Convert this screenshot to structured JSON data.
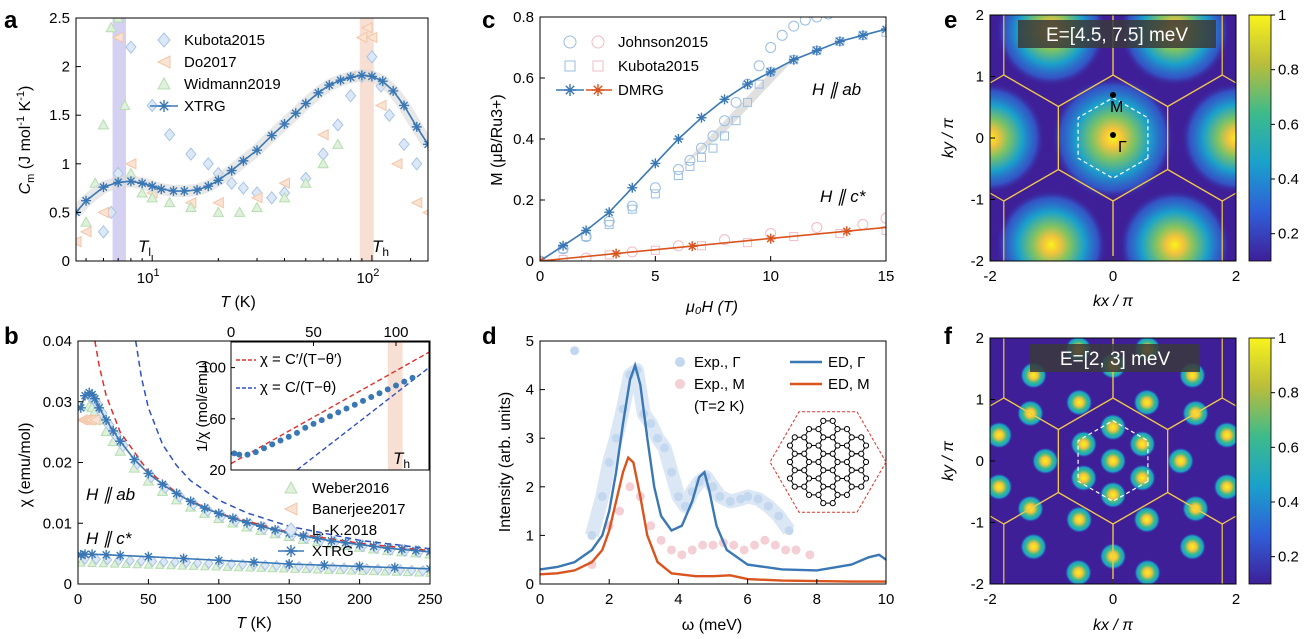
{
  "panels": {
    "a": {
      "label": "a",
      "xlabel_italic": "T",
      "xlabel_rest": " (K)",
      "ylabel_main": "C",
      "ylabel_sub": "m",
      "ylabel_rest": " (J mol",
      "ylabel_exp1": "-1",
      "ylabel_mid": " K",
      "ylabel_exp2": "-1",
      "ylabel_end": ")",
      "xticks": [
        "10",
        "10"
      ],
      "xtick_exps": [
        "1",
        "2"
      ],
      "yticks": [
        "0",
        "0.5",
        "1",
        "1.5",
        "2",
        "2.5"
      ],
      "legend": [
        "Kubota2015",
        "Do2017",
        "Widmann2019",
        "XTRG"
      ],
      "annot_Tl": "T",
      "annot_Tl_sub": "l",
      "annot_Th": "T",
      "annot_Th_sub": "h"
    },
    "b": {
      "label": "b",
      "xlabel_italic": "T",
      "xlabel_rest": " (K)",
      "ylabel": "χ (emu/mol)",
      "xticks": [
        "0",
        "50",
        "100",
        "150",
        "200",
        "250"
      ],
      "yticks": [
        "0",
        "0.01",
        "0.02",
        "0.03",
        "0.04"
      ],
      "legend": [
        "Weber2016",
        "Banerjee2017",
        "L.-K.2018",
        "XTRG"
      ],
      "annot_ab": "H ∥ ab",
      "annot_c": "H ∥ c*",
      "inset": {
        "ylabel": "1/χ (mol/emu)",
        "xticks": [
          "0",
          "50",
          "100"
        ],
        "yticks": [
          "20",
          "60",
          "100"
        ],
        "legend": [
          "χ = C′/(T−θ′)",
          "χ = C/(T−θ)"
        ],
        "annot_Th": "T",
        "annot_Th_sub": "h"
      }
    },
    "c": {
      "label": "c",
      "xlabel": "μ₀H (T)",
      "ylabel": "M (μB/Ru3+)",
      "xticks": [
        "0",
        "5",
        "10",
        "15"
      ],
      "yticks": [
        "0",
        "0.2",
        "0.4",
        "0.6",
        "0.8"
      ],
      "legend": [
        "Johnson2015",
        "Kubota2015",
        "DMRG"
      ],
      "annot_ab": "H ∥ ab",
      "annot_c": "H ∥ c*"
    },
    "d": {
      "label": "d",
      "xlabel": "ω (meV)",
      "ylabel": "Intensity (arb. units)",
      "xticks": [
        "0",
        "2",
        "4",
        "6",
        "8",
        "10"
      ],
      "yticks": [
        "0",
        "1",
        "2",
        "3",
        "4",
        "5"
      ],
      "legend": [
        "Exp., Γ",
        "Exp., M",
        "(T=2 K)",
        "ED, Γ",
        "ED, M"
      ]
    },
    "e": {
      "label": "e",
      "title": "E=[4.5, 7.5] meV",
      "xlabel": "kx / π",
      "ylabel": "ky / π",
      "xticks": [
        "-2",
        "0",
        "2"
      ],
      "yticks": [
        "-2",
        "-1",
        "0",
        "1",
        "2"
      ],
      "cbticks": [
        "0.2",
        "0.4",
        "0.6",
        "0.8",
        "1"
      ],
      "point_M": "M",
      "point_G": "Γ"
    },
    "f": {
      "label": "f",
      "title": "E=[2, 3] meV",
      "xlabel": "kx / π",
      "ylabel": "ky / π",
      "xticks": [
        "-2",
        "0",
        "2"
      ],
      "yticks": [
        "-2",
        "-1",
        "0",
        "1",
        "2"
      ],
      "cbticks": [
        "0.2",
        "0.4",
        "0.6",
        "0.8",
        "1"
      ]
    }
  },
  "colors": {
    "blue": "#3a78b5",
    "orange": "#d9541e",
    "lightblue": "#a8c4e6",
    "lightorange": "#f2c6a8",
    "lightgreen": "#b6deb0",
    "pink": "#f2bcc4",
    "grid_gold": "#f2c84b",
    "dashed_red": "#e0302a",
    "dashed_blue": "#3050c0"
  },
  "chart_data": [
    {
      "panel": "a",
      "type": "scatter",
      "xscale": "log",
      "xlim": [
        4.5,
        180
      ],
      "ylim": [
        0,
        2.5
      ],
      "series": [
        {
          "name": "XTRG",
          "type": "line",
          "x": [
            4.5,
            5,
            6,
            7,
            8,
            9,
            10,
            11,
            12.5,
            14,
            16,
            18,
            20,
            23,
            26,
            30,
            35,
            40,
            45,
            50,
            57,
            64,
            72,
            80,
            90,
            100,
            112,
            125,
            140,
            160,
            180
          ],
          "y": [
            0.5,
            0.62,
            0.76,
            0.81,
            0.82,
            0.8,
            0.77,
            0.74,
            0.72,
            0.72,
            0.73,
            0.77,
            0.83,
            0.93,
            1.03,
            1.14,
            1.29,
            1.41,
            1.52,
            1.62,
            1.73,
            1.81,
            1.86,
            1.89,
            1.91,
            1.9,
            1.85,
            1.75,
            1.6,
            1.38,
            1.2
          ]
        },
        {
          "name": "Kubota2015",
          "type": "scatter",
          "x": [
            6,
            6.5,
            7,
            8,
            10,
            12,
            15,
            18,
            20,
            23,
            26,
            30,
            35,
            40,
            50,
            60,
            70,
            80,
            90,
            100,
            110,
            120,
            140,
            160
          ],
          "y": [
            0.3,
            0.5,
            0.9,
            2.2,
            1.6,
            1.3,
            1.1,
            1.0,
            0.9,
            0.8,
            0.75,
            0.7,
            0.65,
            0.7,
            0.85,
            1.1,
            1.4,
            1.7,
            1.9,
            2.1,
            1.8,
            1.5,
            1.2,
            1.0
          ]
        },
        {
          "name": "Do2017",
          "type": "scatter",
          "x": [
            4.5,
            5,
            6,
            7,
            8,
            10,
            15,
            20,
            30,
            40,
            60,
            80,
            90,
            95,
            100,
            110,
            130,
            160,
            180
          ],
          "y": [
            0.2,
            0.3,
            0.5,
            2.3,
            1.0,
            0.7,
            0.6,
            0.6,
            0.65,
            0.8,
            1.3,
            1.9,
            2.3,
            2.4,
            2.3,
            1.6,
            1.0,
            0.6,
            0.5
          ]
        },
        {
          "name": "Widmann2019",
          "type": "scatter",
          "x": [
            5,
            5.5,
            6,
            6.5,
            7,
            7.5,
            8,
            9,
            10,
            12,
            15,
            20,
            25,
            30,
            40,
            50,
            60,
            70
          ],
          "y": [
            0.4,
            0.8,
            1.4,
            2.4,
            2.5,
            1.6,
            0.9,
            0.7,
            0.65,
            0.6,
            0.55,
            0.5,
            0.5,
            0.55,
            0.65,
            0.8,
            1.0,
            1.2
          ]
        }
      ]
    },
    {
      "panel": "b",
      "type": "line",
      "xlim": [
        0,
        250
      ],
      "ylim": [
        0,
        0.04
      ],
      "series": [
        {
          "name": "XTRG",
          "type": "line",
          "x": [
            2,
            5,
            8,
            10,
            12,
            15,
            20,
            25,
            30,
            40,
            50,
            60,
            70,
            80,
            90,
            100,
            110,
            120,
            130,
            140,
            150,
            160,
            170,
            180,
            190,
            200,
            210,
            220,
            230,
            240,
            250
          ],
          "y": [
            0.029,
            0.031,
            0.0315,
            0.0312,
            0.0305,
            0.029,
            0.027,
            0.0252,
            0.0235,
            0.0205,
            0.0182,
            0.0164,
            0.0149,
            0.0136,
            0.0125,
            0.0116,
            0.0108,
            0.0101,
            0.0095,
            0.0089,
            0.0084,
            0.0079,
            0.0075,
            0.0071,
            0.0068,
            0.0065,
            0.0062,
            0.0059,
            0.0057,
            0.0055,
            0.0053
          ]
        },
        {
          "name": "XTRG c*",
          "type": "line",
          "x": [
            2,
            5,
            10,
            20,
            30,
            50,
            75,
            100,
            125,
            150,
            175,
            200,
            225,
            250
          ],
          "y": [
            0.0048,
            0.0049,
            0.0049,
            0.0048,
            0.0047,
            0.0045,
            0.0042,
            0.0039,
            0.0036,
            0.0033,
            0.0031,
            0.0029,
            0.0027,
            0.0025
          ]
        },
        {
          "name": "Curie-Weiss C'",
          "type": "dashed",
          "x": [
            12,
            15,
            20,
            30,
            50,
            75,
            100,
            150,
            200,
            250
          ],
          "y": [
            0.04,
            0.036,
            0.031,
            0.025,
            0.0185,
            0.0142,
            0.0116,
            0.0085,
            0.0067,
            0.0055
          ]
        },
        {
          "name": "Curie-Weiss C",
          "type": "dashed",
          "x": [
            41,
            45,
            50,
            60,
            70,
            80,
            100,
            120,
            150,
            200,
            250
          ],
          "y": [
            0.04,
            0.034,
            0.029,
            0.023,
            0.0195,
            0.017,
            0.0138,
            0.0117,
            0.0095,
            0.0072,
            0.0058
          ]
        }
      ],
      "inset": {
        "xlim": [
          0,
          120
        ],
        "ylim": [
          20,
          120
        ],
        "points": {
          "x": [
            2,
            5,
            10,
            15,
            20,
            25,
            30,
            35,
            40,
            45,
            50,
            55,
            60,
            65,
            70,
            75,
            80,
            85,
            90,
            95,
            100,
            105,
            110
          ],
          "y": [
            33,
            32,
            32,
            34,
            37,
            40,
            43,
            46,
            49,
            53,
            56,
            59,
            62,
            65,
            68,
            71,
            74,
            77,
            80,
            83,
            86,
            89,
            92
          ]
        },
        "fit1": {
          "x": [
            0,
            120
          ],
          "y": [
            25,
            112
          ]
        },
        "fit2": {
          "x": [
            40,
            120
          ],
          "y": [
            20,
            100
          ]
        }
      }
    },
    {
      "panel": "c",
      "type": "line",
      "xlim": [
        0,
        15
      ],
      "ylim": [
        0,
        0.8
      ],
      "series": [
        {
          "name": "DMRG ab",
          "type": "line",
          "x": [
            0,
            1,
            2,
            3,
            4,
            5,
            6,
            7,
            8,
            9,
            10,
            11,
            12,
            13,
            14,
            15
          ],
          "y": [
            0,
            0.05,
            0.1,
            0.16,
            0.24,
            0.32,
            0.4,
            0.47,
            0.53,
            0.58,
            0.62,
            0.66,
            0.69,
            0.72,
            0.74,
            0.76
          ]
        },
        {
          "name": "DMRG c*",
          "type": "line",
          "x": [
            0,
            5,
            10,
            15
          ],
          "y": [
            0,
            0.037,
            0.074,
            0.11
          ]
        },
        {
          "name": "Johnson2015 ab",
          "type": "scatter",
          "x": [
            0,
            1,
            2,
            3,
            4,
            5,
            6,
            6.5,
            7,
            7.5,
            8,
            8.5,
            9,
            9.5,
            10,
            10.5,
            11,
            11.5,
            12,
            12.5,
            13
          ],
          "y": [
            0,
            0.04,
            0.08,
            0.13,
            0.18,
            0.24,
            0.3,
            0.33,
            0.37,
            0.41,
            0.46,
            0.52,
            0.58,
            0.64,
            0.7,
            0.74,
            0.77,
            0.79,
            0.8,
            0.81,
            0.82
          ]
        },
        {
          "name": "Kubota2015 ab",
          "type": "scatter",
          "x": [
            0,
            1,
            2,
            3,
            4,
            5,
            6,
            6.5,
            7,
            7.5,
            8,
            8.5,
            9,
            9.5,
            10,
            11,
            12,
            13,
            14,
            15
          ],
          "y": [
            0,
            0.04,
            0.08,
            0.12,
            0.17,
            0.22,
            0.28,
            0.31,
            0.34,
            0.37,
            0.41,
            0.46,
            0.52,
            0.58,
            0.62,
            0.66,
            0.69,
            0.72,
            0.74,
            0.75
          ]
        },
        {
          "name": "Johnson2015 c*",
          "type": "scatter",
          "x": [
            2,
            4,
            6,
            8,
            10,
            12,
            14,
            15
          ],
          "y": [
            0.01,
            0.03,
            0.05,
            0.07,
            0.09,
            0.11,
            0.12,
            0.14
          ]
        },
        {
          "name": "Kubota2015 c*",
          "type": "scatter",
          "x": [
            1,
            3,
            5,
            7,
            9,
            11,
            13,
            15
          ],
          "y": [
            0.005,
            0.02,
            0.035,
            0.05,
            0.06,
            0.08,
            0.09,
            0.1
          ]
        }
      ]
    },
    {
      "panel": "d",
      "type": "line",
      "xlim": [
        0,
        10
      ],
      "ylim": [
        0,
        5
      ],
      "series": [
        {
          "name": "ED, Γ",
          "type": "line",
          "x": [
            0,
            0.5,
            1,
            1.5,
            1.8,
            2,
            2.2,
            2.4,
            2.6,
            2.75,
            2.9,
            3.1,
            3.3,
            3.5,
            3.8,
            4.1,
            4.4,
            4.6,
            4.75,
            4.9,
            5.1,
            5.4,
            6,
            7,
            8,
            9,
            9.5,
            9.8,
            10
          ],
          "y": [
            0.3,
            0.35,
            0.45,
            0.7,
            1.0,
            1.5,
            2.3,
            3.3,
            4.2,
            4.5,
            4.1,
            3.0,
            2.0,
            1.4,
            1.1,
            1.2,
            1.7,
            2.2,
            2.3,
            1.9,
            1.2,
            0.7,
            0.4,
            0.3,
            0.28,
            0.4,
            0.55,
            0.6,
            0.5
          ]
        },
        {
          "name": "ED, M",
          "type": "line",
          "x": [
            0,
            0.5,
            1,
            1.5,
            1.8,
            2,
            2.2,
            2.4,
            2.55,
            2.7,
            2.9,
            3.1,
            3.4,
            3.8,
            4.5,
            5,
            5.5,
            6,
            7,
            8,
            9,
            10
          ],
          "y": [
            0.2,
            0.22,
            0.28,
            0.45,
            0.7,
            1.1,
            1.7,
            2.3,
            2.6,
            2.5,
            1.8,
            1.0,
            0.45,
            0.22,
            0.16,
            0.16,
            0.18,
            0.1,
            0.07,
            0.06,
            0.05,
            0.05
          ]
        },
        {
          "name": "Exp., Γ",
          "type": "scatter",
          "x": [
            1,
            1.5,
            1.8,
            2,
            2.2,
            2.4,
            2.6,
            2.8,
            3,
            3.2,
            3.4,
            3.6,
            3.8,
            4,
            4.2,
            4.4,
            4.6,
            4.8,
            5,
            5.2,
            5.5,
            5.8,
            6,
            6.3,
            6.6,
            6.9,
            7.2
          ],
          "y": [
            4.8,
            1.0,
            1.8,
            2.5,
            3.0,
            3.6,
            4.3,
            4.4,
            3.5,
            3.3,
            3.0,
            2.8,
            2.3,
            1.8,
            1.6,
            1.9,
            2.1,
            2.2,
            2.0,
            1.8,
            1.7,
            1.75,
            1.8,
            1.75,
            1.6,
            1.4,
            1.1
          ]
        },
        {
          "name": "Exp., M",
          "type": "scatter",
          "x": [
            1.5,
            2,
            2.3,
            2.6,
            2.9,
            3.2,
            3.5,
            3.8,
            4.1,
            4.4,
            4.7,
            5,
            5.3,
            5.6,
            5.9,
            6.2,
            6.5,
            6.8,
            7.1,
            7.4,
            7.8
          ],
          "y": [
            0.4,
            1.2,
            1.5,
            2.0,
            1.8,
            1.2,
            0.9,
            0.7,
            0.6,
            0.7,
            0.8,
            0.8,
            0.85,
            0.8,
            0.7,
            0.8,
            0.9,
            0.8,
            0.7,
            0.7,
            0.6
          ]
        }
      ]
    },
    {
      "panel": "e",
      "type": "heatmap",
      "xlim": [
        -2,
        2
      ],
      "ylim": [
        -2,
        2
      ],
      "clim": [
        0.1,
        1
      ],
      "pattern": "broad maxima at Γ and second-BZ Γ points"
    },
    {
      "panel": "f",
      "type": "heatmap",
      "xlim": [
        -2,
        2
      ],
      "ylim": [
        -2,
        2
      ],
      "clim": [
        0.1,
        1
      ],
      "pattern": "discrete peaks at Γ, M and K-type points"
    }
  ]
}
